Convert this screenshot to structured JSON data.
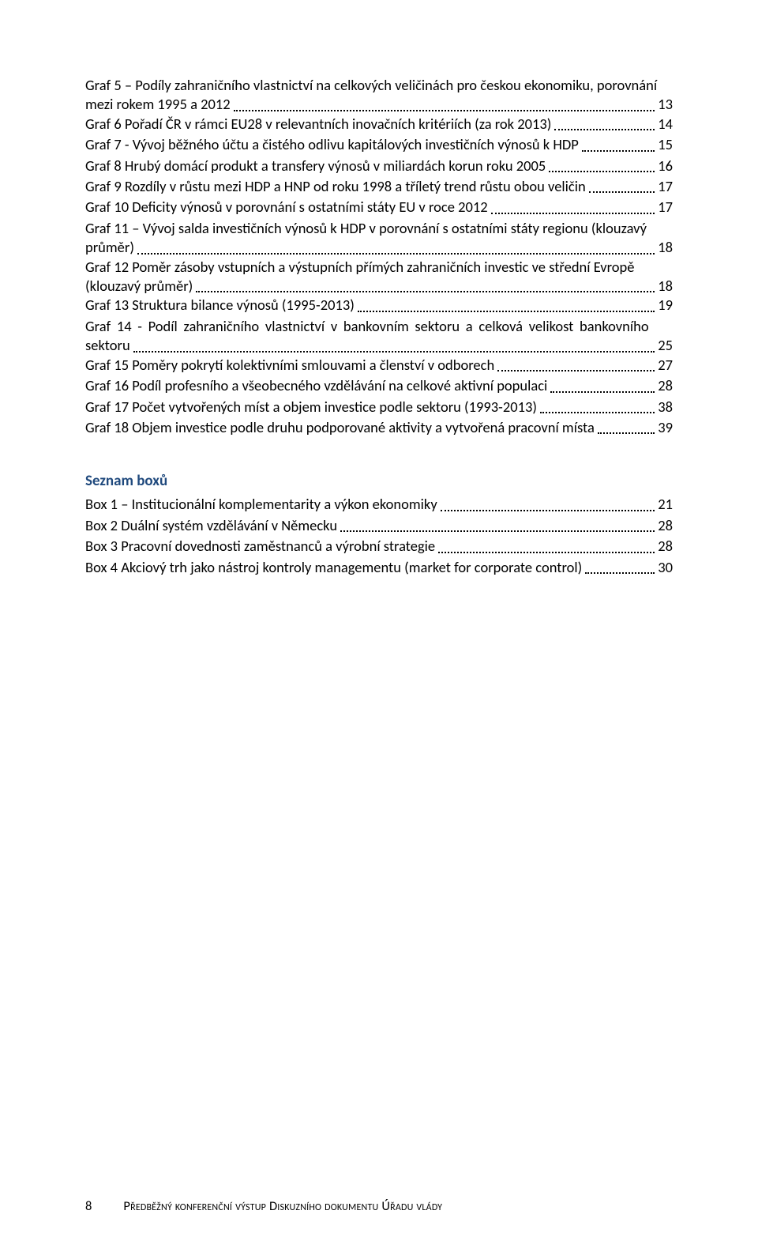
{
  "grafEntries": [
    {
      "line1": "Graf 5 – Podíly zahraničního vlastnictví na celkových veličinách pro českou ekonomiku, porovnání",
      "line2": "mezi rokem 1995 a 2012",
      "page": "13"
    },
    {
      "line1": "Graf 6 Pořadí ČR v rámci EU28 v relevantních inovačních kritériích (za rok 2013)",
      "page": "14"
    },
    {
      "line1": "Graf 7 -  Vývoj běžného účtu a čistého odlivu kapitálových investičních výnosů k HDP",
      "page": "15"
    },
    {
      "line1": "Graf 8 Hrubý domácí produkt a transfery výnosů v miliardách korun roku 2005",
      "page": "16"
    },
    {
      "line1": "Graf 9 Rozdíly v růstu mezi HDP a HNP od roku 1998 a tříletý trend růstu obou veličin",
      "page": "17"
    },
    {
      "line1": "Graf 10 Deficity výnosů v porovnání s ostatními státy EU v roce 2012",
      "page": "17"
    },
    {
      "line1": "Graf 11 – Vývoj salda investičních výnosů k HDP v porovnání s ostatními státy regionu (klouzavý",
      "line2": "průměr)",
      "page": "18"
    },
    {
      "line1": "Graf 12 Poměr zásoby vstupních a výstupních přímých zahraničních investic ve střední Evropě",
      "line2": "(klouzavý průměr)",
      "page": "18"
    },
    {
      "line1": "Graf 13 Struktura bilance výnosů (1995-2013)",
      "page": "19"
    },
    {
      "line1": "Graf 14 - Podíl zahraničního vlastnictví v bankovním sektoru a celková velikost bankovního",
      "line2": "sektoru",
      "page": "25"
    },
    {
      "line1": "Graf 15 Poměry pokrytí kolektivními smlouvami a členství v odborech",
      "page": "27"
    },
    {
      "line1": "Graf 16 Podíl profesního a všeobecného vzdělávání na celkové aktivní populaci",
      "page": "28"
    },
    {
      "line1": "Graf 17 Počet vytvořených míst a objem investice podle sektoru (1993-2013)",
      "page": "38"
    },
    {
      "line1": "Graf 18 Objem investice podle druhu podporované aktivity a vytvořená pracovní místa",
      "page": "39"
    }
  ],
  "boxesHeading": "Seznam boxů",
  "boxEntries": [
    {
      "line1": "Box 1 – Institucionální komplementarity a výkon ekonomiky",
      "page": "21"
    },
    {
      "line1": "Box 2 Duální systém vzdělávání v Německu",
      "page": "28"
    },
    {
      "line1": "Box 3  Pracovní dovednosti zaměstnanců a výrobní strategie",
      "page": "28"
    },
    {
      "line1": "Box 4 Akciový trh jako nástroj kontroly managementu (market for corporate control)",
      "page": "30"
    }
  ],
  "footer": {
    "pageNumber": "8",
    "text": "Předběžný konferenční výstup Diskuzního dokumentu Úřadu vlády"
  }
}
